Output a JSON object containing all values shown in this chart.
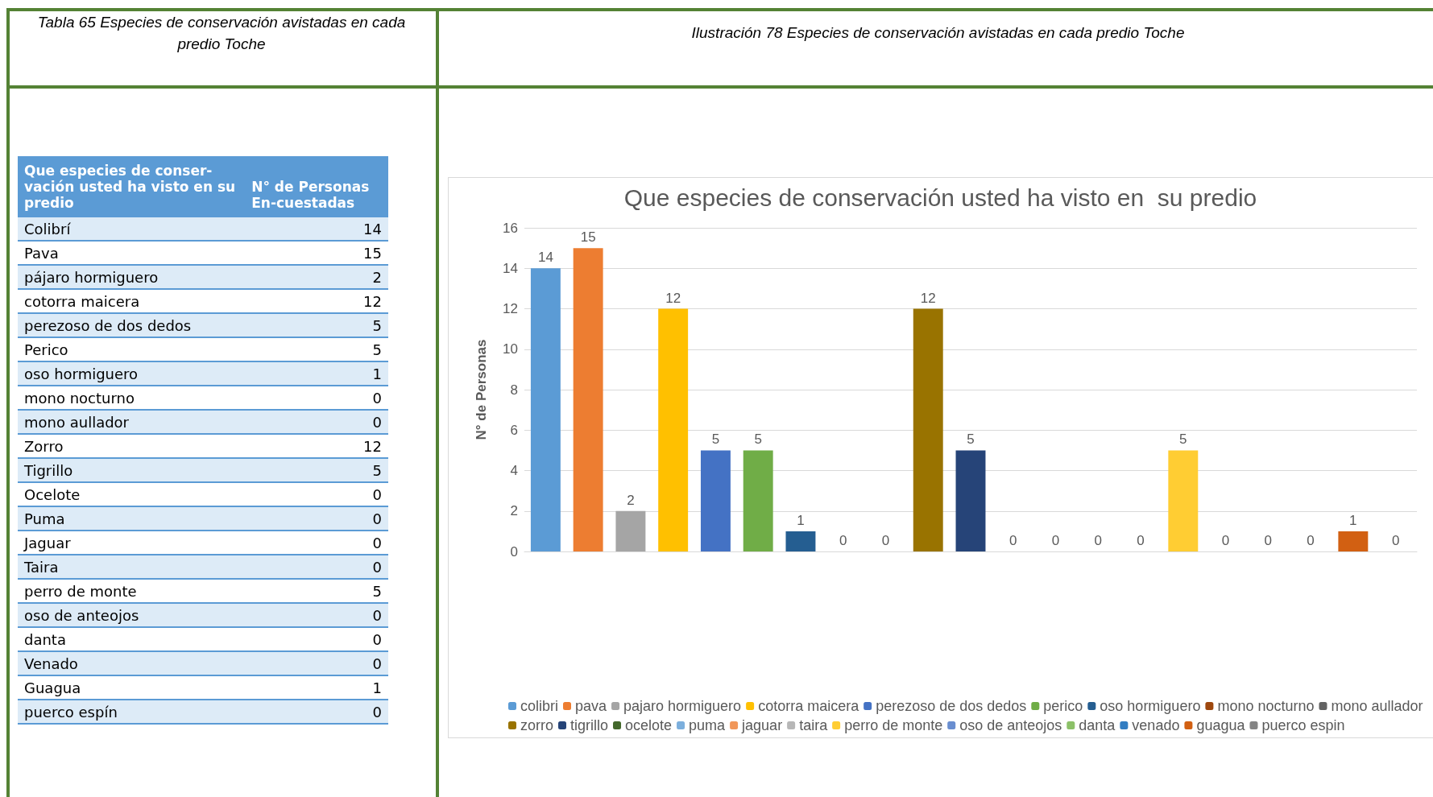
{
  "chart_data": {
    "type": "bar",
    "title": "Que especies de conservación usted ha visto en  su predio",
    "ylabel": "N° de Personas",
    "annotations": [
      "Tabla 65  Especies de conservación avistadas en cada predio Toche",
      "Ilustración 78  Especies de conservación avistadas en cada predio Toche",
      "Que especies de conser-vación usted ha visto en su predio",
      "N° de Personas En-cuestadas",
      "Colibrí",
      "Pava",
      "pájaro hormiguero",
      "cotorra maicera",
      "perezoso de dos dedos",
      "Perico",
      "oso hormiguero",
      "mono nocturno",
      "mono aullador",
      "Zorro",
      "Tigrillo",
      "Ocelote",
      "Puma",
      "Jaguar",
      "Taira",
      "perro de monte",
      "oso de anteojos",
      "danta",
      "Venado",
      "Guagua",
      "puerco espín",
      "14",
      "15",
      "2",
      "12",
      "5",
      "5",
      "1",
      "0",
      "0",
      "12",
      "5",
      "0",
      "0",
      "0",
      "0",
      "5",
      "0",
      "0",
      "0",
      "1",
      "0"
    ],
    "categories": [
      null,
      null,
      null,
      null,
      null,
      null,
      null,
      null,
      null,
      null,
      null,
      null,
      null,
      null,
      null,
      null,
      null,
      null,
      null,
      null,
      null
    ],
    "series": [
      {
        "name": "colibri",
        "color": "#5b9bd5",
        "values": [
          14,
          null,
          null,
          null,
          null,
          null,
          null,
          null,
          null,
          null,
          null,
          null,
          null,
          null,
          null,
          null,
          null,
          null,
          null,
          null,
          null
        ]
      },
      {
        "name": "pava",
        "color": "#ed7d31",
        "values": [
          null,
          15,
          null,
          null,
          null,
          null,
          null,
          null,
          null,
          null,
          null,
          null,
          null,
          null,
          null,
          null,
          null,
          null,
          null,
          null,
          null
        ]
      },
      {
        "name": "pajaro hormiguero",
        "color": "#a5a5a5",
        "values": [
          null,
          null,
          2,
          null,
          null,
          null,
          null,
          null,
          null,
          null,
          null,
          null,
          null,
          null,
          null,
          null,
          null,
          null,
          null,
          null,
          null
        ]
      },
      {
        "name": "cotorra maicera",
        "color": "#ffc000",
        "values": [
          null,
          null,
          null,
          12,
          null,
          null,
          null,
          null,
          null,
          null,
          null,
          null,
          null,
          null,
          null,
          null,
          null,
          null,
          null,
          null,
          null
        ]
      },
      {
        "name": "perezoso de dos dedos",
        "color": "#4472c4",
        "values": [
          null,
          null,
          null,
          null,
          5,
          null,
          null,
          null,
          null,
          null,
          null,
          null,
          null,
          null,
          null,
          null,
          null,
          null,
          null,
          null,
          null
        ]
      },
      {
        "name": "perico",
        "color": "#70ad47",
        "values": [
          null,
          null,
          null,
          null,
          null,
          5,
          null,
          null,
          null,
          null,
          null,
          null,
          null,
          null,
          null,
          null,
          null,
          null,
          null,
          null,
          null
        ]
      },
      {
        "name": "oso hormiguero",
        "color": "#255e91",
        "values": [
          null,
          null,
          null,
          null,
          null,
          null,
          1,
          null,
          null,
          null,
          null,
          null,
          null,
          null,
          null,
          null,
          null,
          null,
          null,
          null,
          null
        ]
      },
      {
        "name": "mono nocturno",
        "color": "#9e480e",
        "values": [
          null,
          null,
          null,
          null,
          null,
          null,
          null,
          0,
          null,
          null,
          null,
          null,
          null,
          null,
          null,
          null,
          null,
          null,
          null,
          null,
          null
        ]
      },
      {
        "name": "mono aullador",
        "color": "#636363",
        "values": [
          null,
          null,
          null,
          null,
          null,
          null,
          null,
          null,
          0,
          null,
          null,
          null,
          null,
          null,
          null,
          null,
          null,
          null,
          null,
          null,
          null
        ]
      },
      {
        "name": "zorro",
        "color": "#997300",
        "values": [
          null,
          null,
          null,
          null,
          null,
          null,
          null,
          null,
          null,
          12,
          null,
          null,
          null,
          null,
          null,
          null,
          null,
          null,
          null,
          null,
          null
        ]
      },
      {
        "name": "tigrillo",
        "color": "#264478",
        "values": [
          null,
          null,
          null,
          null,
          null,
          null,
          null,
          null,
          null,
          null,
          5,
          null,
          null,
          null,
          null,
          null,
          null,
          null,
          null,
          null,
          null
        ]
      },
      {
        "name": "ocelote",
        "color": "#43682b",
        "values": [
          null,
          null,
          null,
          null,
          null,
          null,
          null,
          null,
          null,
          null,
          null,
          0,
          null,
          null,
          null,
          null,
          null,
          null,
          null,
          null,
          null
        ]
      },
      {
        "name": "puma",
        "color": "#7cafdd",
        "values": [
          null,
          null,
          null,
          null,
          null,
          null,
          null,
          null,
          null,
          null,
          null,
          null,
          0,
          null,
          null,
          null,
          null,
          null,
          null,
          null,
          null
        ]
      },
      {
        "name": "jaguar",
        "color": "#f1975a",
        "values": [
          null,
          null,
          null,
          null,
          null,
          null,
          null,
          null,
          null,
          null,
          null,
          null,
          null,
          0,
          null,
          null,
          null,
          null,
          null,
          null,
          null
        ]
      },
      {
        "name": "taira",
        "color": "#b7b7b7",
        "values": [
          null,
          null,
          null,
          null,
          null,
          null,
          null,
          null,
          null,
          null,
          null,
          null,
          null,
          null,
          0,
          null,
          null,
          null,
          null,
          null,
          null
        ]
      },
      {
        "name": "perro de monte",
        "color": "#ffcd33",
        "values": [
          null,
          null,
          null,
          null,
          null,
          null,
          null,
          null,
          null,
          null,
          null,
          null,
          null,
          null,
          null,
          5,
          null,
          null,
          null,
          null,
          null
        ]
      },
      {
        "name": "oso de anteojos",
        "color": "#698ed0",
        "values": [
          null,
          null,
          null,
          null,
          null,
          null,
          null,
          null,
          null,
          null,
          null,
          null,
          null,
          null,
          null,
          null,
          0,
          null,
          null,
          null,
          null
        ]
      },
      {
        "name": "danta",
        "color": "#8cc168",
        "values": [
          null,
          null,
          null,
          null,
          null,
          null,
          null,
          null,
          null,
          null,
          null,
          null,
          null,
          null,
          null,
          null,
          null,
          0,
          null,
          null,
          null
        ]
      },
      {
        "name": "venado",
        "color": "#327dc2",
        "values": [
          null,
          null,
          null,
          null,
          null,
          null,
          null,
          null,
          null,
          null,
          null,
          null,
          null,
          null,
          null,
          null,
          null,
          null,
          0,
          null,
          null
        ]
      },
      {
        "name": "guagua",
        "color": "#d26012",
        "values": [
          null,
          null,
          null,
          null,
          null,
          null,
          null,
          null,
          null,
          null,
          null,
          null,
          null,
          null,
          null,
          null,
          null,
          null,
          null,
          1,
          null
        ]
      },
      {
        "name": "puerco espin",
        "color": "#848484",
        "values": [
          null,
          null,
          null,
          null,
          null,
          null,
          null,
          null,
          null,
          null,
          null,
          null,
          null,
          null,
          null,
          null,
          null,
          null,
          null,
          null,
          0
        ]
      }
    ],
    "ylim": [
      0,
      16
    ],
    "yticks": [
      0,
      2,
      4,
      6,
      8,
      10,
      12,
      14,
      16
    ],
    "grid": "y",
    "legend": "bottom",
    "data_labels": true
  }
}
